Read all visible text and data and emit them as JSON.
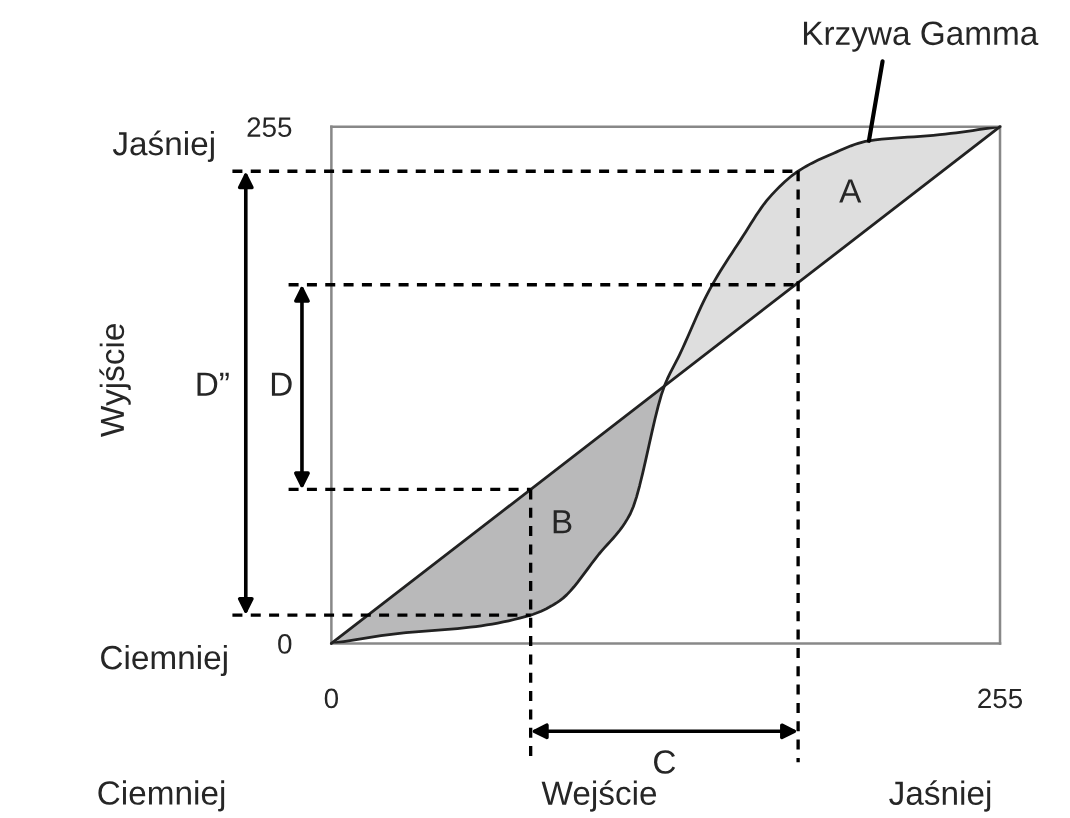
{
  "chart_data": {
    "type": "line",
    "xlabel": "Wejście",
    "ylabel": "Wyjście",
    "xlim": [
      0,
      255
    ],
    "ylim": [
      0,
      255
    ],
    "xticks": [
      0,
      255
    ],
    "yticks": [
      0,
      255
    ],
    "grid": false,
    "series": [
      {
        "color": "#222222",
        "x": [
          0,
          255
        ],
        "values": [
          0,
          255
        ]
      },
      {
        "color": "#222222",
        "x": [
          0,
          26,
          53,
          76,
          87,
          102,
          114,
          127,
          133,
          144,
          156,
          167,
          178,
          190,
          205,
          232,
          255
        ],
        "values": [
          0,
          5,
          8,
          14,
          21,
          44,
          64,
          127,
          143,
          174,
          199,
          220,
          233,
          241,
          248,
          251,
          255
        ]
      },
      {
        "type": "line",
        "color": "#000000",
        "line_style": "dashed",
        "x": [
          0,
          178
        ],
        "values": [
          233,
          233
        ]
      },
      {
        "type": "line",
        "color": "#000000",
        "line_style": "dashed",
        "x": [
          178,
          178
        ],
        "values": [
          233,
          0
        ]
      },
      {
        "type": "line",
        "color": "#000000",
        "line_style": "dashed",
        "x": [
          0,
          178
        ],
        "values": [
          177,
          177
        ]
      },
      {
        "type": "line",
        "color": "#000000",
        "line_style": "dashed",
        "x": [
          0,
          76
        ],
        "values": [
          76,
          76
        ]
      },
      {
        "type": "line",
        "color": "#000000",
        "line_style": "dashed",
        "x": [
          76,
          76
        ],
        "values": [
          76,
          0
        ]
      },
      {
        "type": "line",
        "color": "#000000",
        "line_style": "dashed",
        "x": [
          0,
          76
        ],
        "values": [
          14,
          14
        ]
      }
    ],
    "annotations": [
      {
        "text": "Krzywa Gamma",
        "x": 205,
        "y": 248
      },
      "A",
      "B",
      "C",
      "D",
      "D”",
      "Jaśniej",
      "Ciemniej",
      "Ciemniej",
      "Jaśniej"
    ]
  }
}
